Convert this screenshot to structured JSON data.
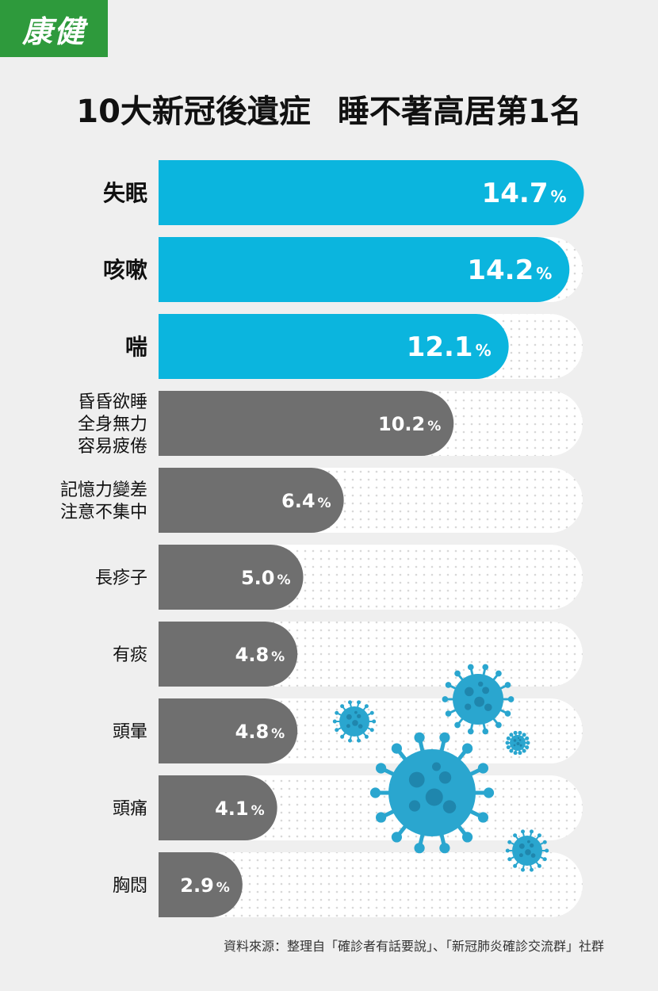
{
  "brand": {
    "logo_text": "康健",
    "color": "#2e9a3c"
  },
  "title": {
    "part1": "10大新冠後遺症",
    "part2": "睡不著高居第1名"
  },
  "source": "資料來源：整理自「確診者有話要說」、「新冠肺炎確診交流群」社群",
  "colors": {
    "highlight": "#0bb5de",
    "normal": "#6f6f6f",
    "track": "#ffffff",
    "virus": "#2aa6cf"
  },
  "chart_data": {
    "type": "bar",
    "orientation": "horizontal",
    "title": "10大新冠後遺症　睡不著高居第1名",
    "unit": "%",
    "xlim": [
      0,
      16
    ],
    "categories": [
      [
        "失眠"
      ],
      [
        "咳嗽"
      ],
      [
        "喘"
      ],
      [
        "昏昏欲睡",
        "全身無力",
        "容易疲倦"
      ],
      [
        "記憶力變差",
        "注意不集中"
      ],
      [
        "長疹子"
      ],
      [
        "有痰"
      ],
      [
        "頭暈"
      ],
      [
        "頭痛"
      ],
      [
        "胸悶"
      ]
    ],
    "values": [
      14.7,
      14.2,
      12.1,
      10.2,
      6.4,
      5.0,
      4.8,
      4.8,
      4.1,
      2.9
    ],
    "labels": [
      "14.7",
      "14.2",
      "12.1",
      "10.2",
      "6.4",
      "5.0",
      "4.8",
      "4.8",
      "4.1",
      "2.9"
    ],
    "highlight_top": 3
  }
}
